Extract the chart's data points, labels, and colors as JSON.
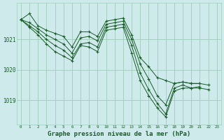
{
  "background_color": "#ceeaea",
  "plot_bg_color": "#ceeaea",
  "grid_color": "#a0ccbc",
  "line_color": "#1a5c2a",
  "marker_color": "#1a5c2a",
  "xlabel": "Graphe pression niveau de la mer (hPa)",
  "xlabel_fontsize": 6.5,
  "xticks": [
    0,
    1,
    2,
    3,
    4,
    5,
    6,
    7,
    8,
    9,
    10,
    11,
    12,
    13,
    14,
    15,
    16,
    17,
    18,
    19,
    20,
    21,
    22,
    23
  ],
  "ytick_positions": [
    1019,
    1020,
    1021
  ],
  "ytick_labels": [
    "1019",
    "1020",
    "1021"
  ],
  "ylim": [
    1018.2,
    1022.2
  ],
  "xlim": [
    -0.5,
    23.5
  ],
  "series": [
    {
      "x": [
        0,
        1,
        2,
        3,
        4,
        5,
        6,
        7,
        8,
        9,
        10,
        11,
        12,
        13,
        14,
        15,
        16,
        17,
        18,
        19,
        20,
        21,
        22
      ],
      "y": [
        1021.65,
        1021.85,
        1021.45,
        1021.3,
        1021.2,
        1021.1,
        1020.75,
        1021.25,
        1021.25,
        1021.1,
        1021.6,
        1021.65,
        1021.7,
        1021.15,
        1020.4,
        1020.1,
        1019.75,
        1019.65,
        1019.55,
        1019.6,
        1019.55,
        1019.55,
        1019.5
      ]
    },
    {
      "x": [
        0,
        1,
        2,
        3,
        4,
        5,
        6,
        7,
        8,
        9,
        10,
        11,
        12,
        13,
        14,
        15,
        16,
        17,
        18,
        19,
        20,
        21
      ],
      "y": [
        1021.65,
        1021.55,
        1021.35,
        1021.15,
        1021.0,
        1020.85,
        1020.55,
        1021.05,
        1021.1,
        1020.95,
        1021.5,
        1021.55,
        1021.6,
        1021.0,
        1020.2,
        1019.7,
        1019.15,
        1018.85,
        1019.55,
        1019.6,
        1019.55,
        1019.55
      ]
    },
    {
      "x": [
        0,
        1,
        2,
        3,
        4,
        5,
        6,
        7,
        8,
        9,
        10,
        11,
        12,
        13,
        14,
        15,
        16,
        17,
        18,
        19,
        20,
        21
      ],
      "y": [
        1021.65,
        1021.45,
        1021.25,
        1021.0,
        1020.8,
        1020.65,
        1020.4,
        1020.85,
        1020.9,
        1020.75,
        1021.4,
        1021.45,
        1021.5,
        1020.8,
        1019.9,
        1019.35,
        1018.9,
        1018.55,
        1019.4,
        1019.5,
        1019.4,
        1019.45
      ]
    },
    {
      "x": [
        0,
        1,
        2,
        3,
        4,
        5,
        6,
        7,
        8,
        9,
        10,
        11,
        12,
        13,
        14,
        15,
        16,
        17,
        18,
        19,
        20,
        21,
        22
      ],
      "y": [
        1021.65,
        1021.4,
        1021.15,
        1020.85,
        1020.6,
        1020.45,
        1020.3,
        1020.8,
        1020.75,
        1020.6,
        1021.3,
        1021.35,
        1021.4,
        1020.55,
        1019.65,
        1019.15,
        1018.75,
        1018.45,
        1019.3,
        1019.4,
        1019.4,
        1019.4,
        1019.35
      ]
    }
  ]
}
